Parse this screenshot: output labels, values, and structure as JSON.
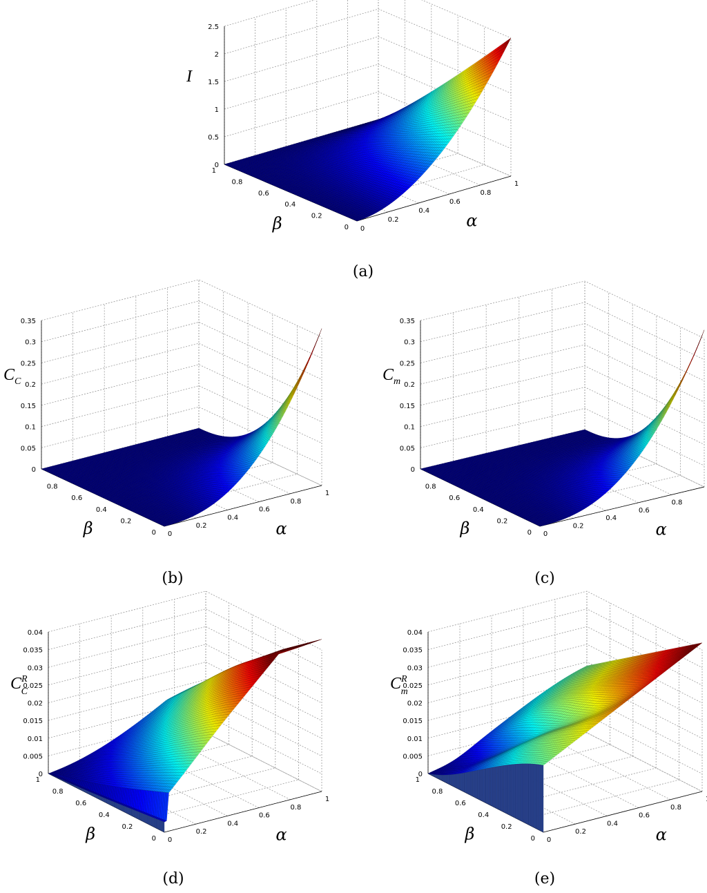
{
  "chart_data": [
    {
      "id": "a",
      "type": "surface",
      "caption": "(a)",
      "zlabel": {
        "main": "I",
        "sub": "",
        "sup": ""
      },
      "xlabel": "α",
      "ylabel": "β",
      "xlim": [
        0,
        1
      ],
      "ylim": [
        0,
        1
      ],
      "zlim": [
        0,
        2.5
      ],
      "xticks": [
        "0",
        "0.2",
        "0.4",
        "0.6",
        "0.8",
        "1"
      ],
      "yticks": [
        "0",
        "0.2",
        "0.4",
        "0.6",
        "0.8",
        "1"
      ],
      "zticks": [
        "0",
        "0.5",
        "1",
        "1.5",
        "2",
        "2.5"
      ],
      "zmax_value": 2.5,
      "colormap": "jet",
      "grid": true
    },
    {
      "id": "b",
      "type": "surface",
      "caption": "(b)",
      "zlabel": {
        "main": "C",
        "sub": "C",
        "sup": ""
      },
      "xlabel": "α",
      "ylabel": "β",
      "xlim": [
        0,
        1
      ],
      "ylim": [
        0,
        1
      ],
      "zlim": [
        0,
        0.35
      ],
      "xticks": [
        "0",
        "0.2",
        "0.4",
        "0.6",
        "0.8",
        "1"
      ],
      "yticks": [
        "0",
        "0.2",
        "0.4",
        "0.6",
        "0.8"
      ],
      "zticks": [
        "0",
        "0.05",
        "0.1",
        "0.15",
        "0.2",
        "0.25",
        "0.3",
        "0.35"
      ],
      "zmax_value": 0.37,
      "colormap": "jet",
      "grid": true
    },
    {
      "id": "c",
      "type": "surface",
      "caption": "(c)",
      "zlabel": {
        "main": "C",
        "sub": "m",
        "sup": ""
      },
      "xlabel": "α",
      "ylabel": "β",
      "xlim": [
        0,
        1
      ],
      "ylim": [
        0,
        1
      ],
      "zlim": [
        0,
        0.35
      ],
      "xticks": [
        "0",
        "0.2",
        "0.4",
        "0.6",
        "0.8",
        "1"
      ],
      "yticks": [
        "0",
        "0.2",
        "0.4",
        "0.6",
        "0.8"
      ],
      "zticks": [
        "0",
        "0.05",
        "0.1",
        "0.15",
        "0.2",
        "0.25",
        "0.3",
        "0.35"
      ],
      "zmax_value": 0.37,
      "colormap": "jet",
      "grid": true
    },
    {
      "id": "d",
      "type": "surface",
      "caption": "(d)",
      "zlabel": {
        "main": "C",
        "sub": "C",
        "sup": "R"
      },
      "xlabel": "α",
      "ylabel": "β",
      "xlim": [
        0,
        1
      ],
      "ylim": [
        0,
        1
      ],
      "zlim": [
        0,
        0.04
      ],
      "xticks": [
        "0",
        "0.2",
        "0.4",
        "0.6",
        "0.8",
        "1"
      ],
      "yticks": [
        "0",
        "0.2",
        "0.4",
        "0.6",
        "0.8",
        "1"
      ],
      "zticks": [
        "0",
        "0.005",
        "0.01",
        "0.015",
        "0.02",
        "0.025",
        "0.03",
        "0.035",
        "0.04"
      ],
      "zmax_value": 0.043,
      "colormap": "jet",
      "grid": true
    },
    {
      "id": "e",
      "type": "surface",
      "caption": "(e)",
      "zlabel": {
        "main": "C",
        "sub": "m",
        "sup": "R"
      },
      "xlabel": "α",
      "ylabel": "β",
      "xlim": [
        0,
        1
      ],
      "ylim": [
        0,
        1
      ],
      "zlim": [
        0,
        0.04
      ],
      "xticks": [
        "0",
        "0.2",
        "0.4",
        "0.6",
        "0.8",
        "1"
      ],
      "yticks": [
        "0",
        "0.2",
        "0.4",
        "0.6",
        "0.8",
        "1"
      ],
      "zticks": [
        "0",
        "0.005",
        "0.01",
        "0.015",
        "0.02",
        "0.025",
        "0.03",
        "0.035",
        "0.04"
      ],
      "zmax_value": 0.042,
      "colormap": "jet",
      "grid": true
    }
  ]
}
